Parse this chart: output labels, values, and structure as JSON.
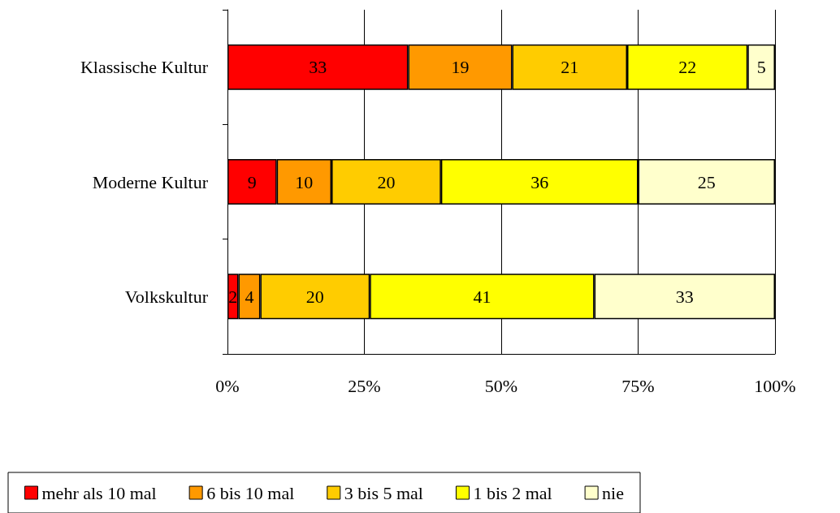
{
  "chart_data": {
    "type": "bar",
    "orientation": "horizontal",
    "stacked": true,
    "categories": [
      "Klassische Kultur",
      "Moderne Kultur",
      "Volkskultur"
    ],
    "series": [
      {
        "name": "mehr als 10 mal",
        "color": "#ff0000",
        "values": [
          33,
          9,
          2
        ]
      },
      {
        "name": "6 bis 10 mal",
        "color": "#ff9900",
        "values": [
          19,
          10,
          4
        ]
      },
      {
        "name": "3 bis 5 mal",
        "color": "#ffcc00",
        "values": [
          21,
          20,
          20
        ]
      },
      {
        "name": "1 bis 2 mal",
        "color": "#ffff00",
        "values": [
          22,
          36,
          41
        ]
      },
      {
        "name": "nie",
        "color": "#ffffcc",
        "values": [
          5,
          25,
          33
        ]
      }
    ],
    "xlim": [
      0,
      100
    ],
    "xticks": [
      {
        "value": 0,
        "label": "0%"
      },
      {
        "value": 25,
        "label": "25%"
      },
      {
        "value": 50,
        "label": "50%"
      },
      {
        "value": 75,
        "label": "75%"
      },
      {
        "value": 100,
        "label": "100%"
      }
    ],
    "grid": "x",
    "legend": "bottom",
    "data_labels": true
  }
}
